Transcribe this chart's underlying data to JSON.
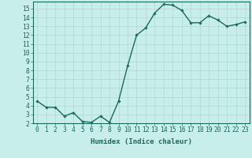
{
  "xlabel": "Humidex (Indice chaleur)",
  "x": [
    0,
    1,
    2,
    3,
    4,
    5,
    6,
    7,
    8,
    9,
    10,
    11,
    12,
    13,
    14,
    15,
    16,
    17,
    18,
    19,
    20,
    21,
    22,
    23
  ],
  "y": [
    4.5,
    3.8,
    3.8,
    2.8,
    3.2,
    2.2,
    2.1,
    2.8,
    2.1,
    4.5,
    8.5,
    12.0,
    12.8,
    14.5,
    15.5,
    15.4,
    14.8,
    13.4,
    13.4,
    14.2,
    13.7,
    13.0,
    13.2,
    13.5
  ],
  "line_color": "#1a6b5a",
  "marker": "D",
  "marker_size": 1.8,
  "bg_color": "#c8eeea",
  "grid_color": "#aad8d3",
  "ylim": [
    2,
    15.8
  ],
  "xlim": [
    -0.5,
    23.5
  ],
  "yticks": [
    2,
    3,
    4,
    5,
    6,
    7,
    8,
    9,
    10,
    11,
    12,
    13,
    14,
    15
  ],
  "xticks": [
    0,
    1,
    2,
    3,
    4,
    5,
    6,
    7,
    8,
    9,
    10,
    11,
    12,
    13,
    14,
    15,
    16,
    17,
    18,
    19,
    20,
    21,
    22,
    23
  ],
  "tick_color": "#1a6b5a",
  "label_fontsize": 6.5,
  "tick_fontsize": 5.8,
  "linewidth": 1.0
}
